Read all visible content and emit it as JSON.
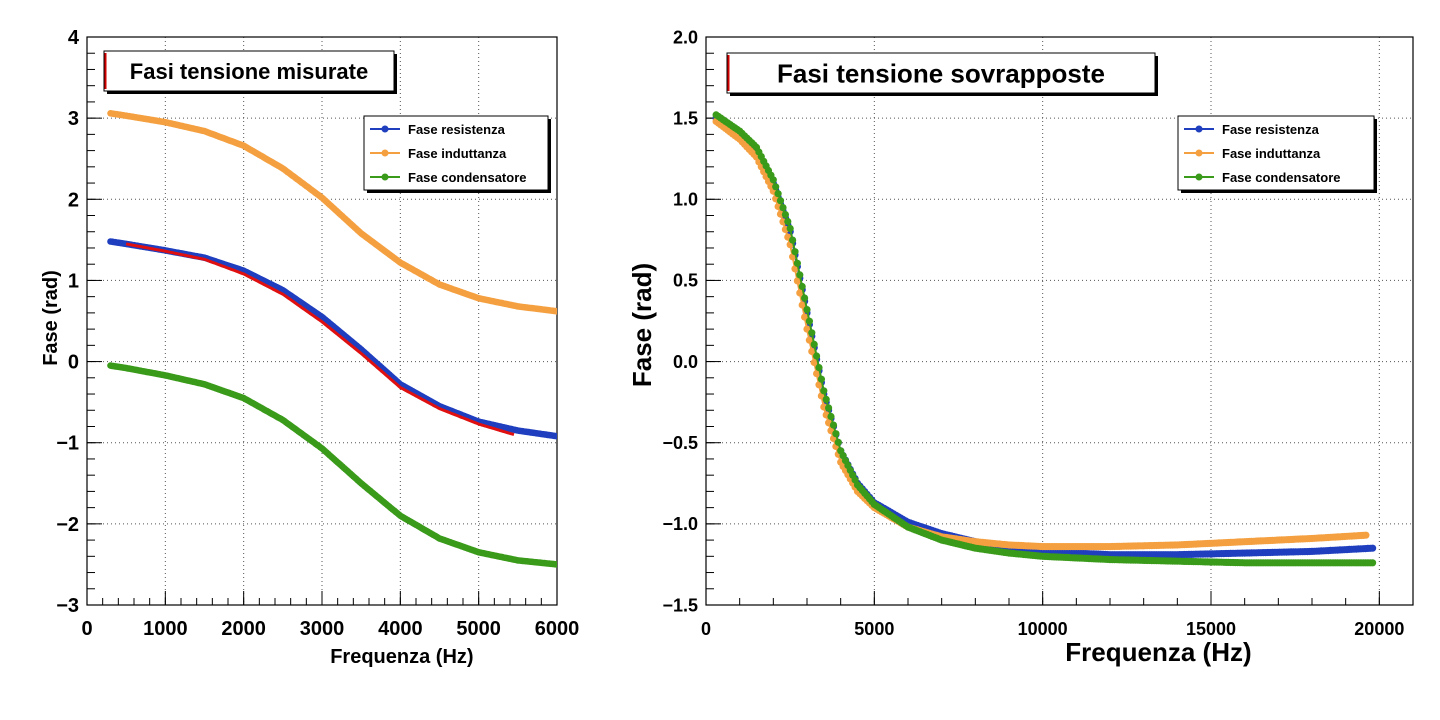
{
  "chart_data": [
    {
      "type": "scatter",
      "title": "Fasi tensione misurate",
      "xlabel": "Frequenza (Hz)",
      "ylabel": "Fase (rad)",
      "xlim": [
        0,
        6000
      ],
      "ylim": [
        -3,
        4
      ],
      "x_ticks": [
        0,
        1000,
        2000,
        3000,
        4000,
        5000,
        6000
      ],
      "x_tick_labels": [
        "0",
        "1000",
        "2000",
        "3000",
        "4000",
        "5000",
        "6000"
      ],
      "y_ticks": [
        -3,
        -2,
        -1,
        0,
        1,
        2,
        3,
        4
      ],
      "y_tick_labels": [
        "−3",
        "−2",
        "−1",
        "0",
        "1",
        "2",
        "3",
        "4"
      ],
      "grid": true,
      "legend_position": "top-right",
      "series": [
        {
          "name": "Fase resistenza",
          "color": "#1f3fbf",
          "x": [
            300,
            500,
            1000,
            1500,
            2000,
            2500,
            3000,
            3500,
            4000,
            4500,
            5000,
            5500,
            6000
          ],
          "y": [
            1.48,
            1.45,
            1.37,
            1.28,
            1.12,
            0.88,
            0.55,
            0.15,
            -0.28,
            -0.55,
            -0.74,
            -0.85,
            -0.92
          ]
        },
        {
          "name": "Fase induttanza",
          "color": "#f5a040",
          "x": [
            300,
            500,
            1000,
            1500,
            2000,
            2500,
            3000,
            3500,
            4000,
            4500,
            5000,
            5500,
            6000
          ],
          "y": [
            3.06,
            3.03,
            2.95,
            2.84,
            2.66,
            2.38,
            2.02,
            1.58,
            1.22,
            0.95,
            0.78,
            0.68,
            0.62
          ]
        },
        {
          "name": "Fase condensatore",
          "color": "#3a9a1a",
          "x": [
            300,
            500,
            1000,
            1500,
            2000,
            2500,
            3000,
            3500,
            4000,
            4500,
            5000,
            5500,
            6000
          ],
          "y": [
            -0.05,
            -0.08,
            -0.17,
            -0.28,
            -0.45,
            -0.72,
            -1.07,
            -1.5,
            -1.9,
            -2.18,
            -2.35,
            -2.45,
            -2.5
          ]
        },
        {
          "color": "#e01010",
          "x": [
            500,
            1000,
            1500,
            2000,
            2500,
            3000,
            3500,
            4000,
            4500,
            5000,
            5450
          ],
          "y": [
            1.45,
            1.36,
            1.26,
            1.08,
            0.83,
            0.49,
            0.1,
            -0.32,
            -0.58,
            -0.77,
            -0.9
          ]
        }
      ]
    },
    {
      "type": "scatter",
      "title": "Fasi tensione sovrapposte",
      "xlabel": "Frequenza (Hz)",
      "ylabel": "Fase (rad)",
      "xlim": [
        0,
        21000
      ],
      "ylim": [
        -1.5,
        2.0
      ],
      "x_ticks": [
        0,
        5000,
        10000,
        15000,
        20000
      ],
      "x_tick_labels": [
        "0",
        "5000",
        "10000",
        "15000",
        "20000"
      ],
      "y_ticks": [
        -1.5,
        -1.0,
        -0.5,
        0.0,
        0.5,
        1.0,
        1.5,
        2.0
      ],
      "y_tick_labels": [
        "−1.5",
        "−1.0",
        "−0.5",
        "0.0",
        "0.5",
        "1.0",
        "1.5",
        "2.0"
      ],
      "grid": true,
      "legend_position": "top-right",
      "series": [
        {
          "name": "Fase resistenza",
          "color": "#1f3fbf",
          "x": [
            300,
            1000,
            1500,
            2000,
            2500,
            3000,
            3500,
            4000,
            4500,
            5000,
            6000,
            7000,
            8000,
            9000,
            10000,
            12000,
            14000,
            16000,
            18000,
            19800
          ],
          "y": [
            1.5,
            1.4,
            1.3,
            1.1,
            0.8,
            0.3,
            -0.2,
            -0.55,
            -0.75,
            -0.87,
            -0.99,
            -1.06,
            -1.11,
            -1.15,
            -1.17,
            -1.19,
            -1.19,
            -1.18,
            -1.17,
            -1.15
          ]
        },
        {
          "name": "Fase induttanza",
          "color": "#f5a040",
          "x": [
            300,
            1000,
            1500,
            2000,
            2500,
            3000,
            3500,
            4000,
            4500,
            5000,
            6000,
            7000,
            8000,
            9000,
            10000,
            12000,
            14000,
            16000,
            18000,
            19600
          ],
          "y": [
            1.48,
            1.37,
            1.26,
            1.05,
            0.72,
            0.2,
            -0.28,
            -0.62,
            -0.8,
            -0.9,
            -1.02,
            -1.08,
            -1.11,
            -1.13,
            -1.14,
            -1.14,
            -1.13,
            -1.11,
            -1.09,
            -1.07
          ]
        },
        {
          "name": "Fase condensatore",
          "color": "#3a9a1a",
          "x": [
            300,
            1000,
            1500,
            2000,
            2500,
            3000,
            3500,
            4000,
            4500,
            5000,
            6000,
            7000,
            8000,
            9000,
            10000,
            12000,
            14000,
            16000,
            18000,
            19800
          ],
          "y": [
            1.52,
            1.42,
            1.32,
            1.12,
            0.82,
            0.32,
            -0.18,
            -0.55,
            -0.76,
            -0.88,
            -1.02,
            -1.1,
            -1.15,
            -1.18,
            -1.2,
            -1.22,
            -1.23,
            -1.24,
            -1.24,
            -1.24
          ]
        }
      ]
    }
  ]
}
